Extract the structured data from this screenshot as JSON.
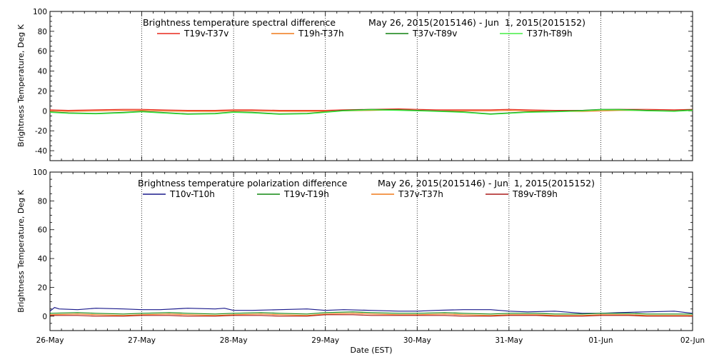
{
  "chart_data": [
    {
      "type": "line",
      "title": "Brightness temperature spectral difference",
      "date_range": "May 26, 2015(2015146) - Jun  1, 2015(2015152)",
      "ylabel": "Brightness Temperature, Deg K",
      "xlabel": "",
      "ylim": [
        -50,
        100
      ],
      "yticks": [
        -40,
        -20,
        0,
        20,
        40,
        60,
        80,
        100
      ],
      "grid": "vertical",
      "legend_placement": "top",
      "series": [
        {
          "name": "T19v-T37v",
          "color": "#e8281c",
          "x": [
            0,
            0.2,
            0.5,
            0.8,
            1.0,
            1.2,
            1.5,
            1.8,
            2.0,
            2.2,
            2.5,
            2.8,
            3.0,
            3.2,
            3.5,
            3.8,
            4.0,
            4.2,
            4.5,
            4.8,
            5.0,
            5.2,
            5.5,
            5.8,
            6.0,
            6.2,
            6.5,
            6.8,
            7.0
          ],
          "y": [
            1.0,
            0.5,
            1.0,
            1.5,
            1.5,
            1.0,
            0.5,
            0.5,
            1.0,
            1.0,
            0.5,
            0.5,
            0.5,
            1.0,
            1.5,
            2.0,
            1.5,
            1.0,
            1.0,
            1.0,
            1.5,
            1.0,
            0.5,
            0.5,
            1.0,
            1.5,
            1.5,
            1.0,
            1.5
          ]
        },
        {
          "name": "T19h-T37h",
          "color": "#f07a1a",
          "x": [
            0,
            0.2,
            0.5,
            0.8,
            1.0,
            1.2,
            1.5,
            1.8,
            2.0,
            2.2,
            2.5,
            2.8,
            3.0,
            3.2,
            3.5,
            3.8,
            4.0,
            4.2,
            4.5,
            4.8,
            5.0,
            5.2,
            5.5,
            5.8,
            6.0,
            6.2,
            6.5,
            6.8,
            7.0
          ],
          "y": [
            0.0,
            -0.5,
            0.0,
            0.5,
            0.5,
            0.0,
            -0.5,
            -0.5,
            0.0,
            0.0,
            -0.5,
            -0.5,
            -0.5,
            0.0,
            0.5,
            1.0,
            0.5,
            0.0,
            0.0,
            0.0,
            0.5,
            0.0,
            -0.5,
            -0.5,
            0.0,
            0.5,
            0.5,
            0.0,
            0.5
          ]
        },
        {
          "name": "T37v-T89v",
          "color": "#118011",
          "x": [
            0,
            0.2,
            0.5,
            0.8,
            1.0,
            1.2,
            1.5,
            1.8,
            2.0,
            2.2,
            2.5,
            2.8,
            3.0,
            3.2,
            3.5,
            3.8,
            4.0,
            4.2,
            4.5,
            4.8,
            5.0,
            5.2,
            5.5,
            5.8,
            6.0,
            6.2,
            6.5,
            6.8,
            7.0
          ],
          "y": [
            -1.0,
            -2.0,
            -2.5,
            -1.5,
            -0.5,
            -1.5,
            -3.0,
            -2.5,
            -1.0,
            -1.5,
            -3.0,
            -2.5,
            -1.0,
            0.5,
            1.5,
            1.0,
            0.5,
            0.0,
            -1.0,
            -3.0,
            -2.0,
            -1.0,
            -0.5,
            0.5,
            1.5,
            1.5,
            0.5,
            0.0,
            1.0
          ]
        },
        {
          "name": "T37h-T89h",
          "color": "#44ee44",
          "x": [
            0,
            0.2,
            0.5,
            0.8,
            1.0,
            1.2,
            1.5,
            1.8,
            2.0,
            2.2,
            2.5,
            2.8,
            3.0,
            3.2,
            3.5,
            3.8,
            4.0,
            4.2,
            4.5,
            4.8,
            5.0,
            5.2,
            5.5,
            5.8,
            6.0,
            6.2,
            6.5,
            6.8,
            7.0
          ],
          "y": [
            -1.5,
            -2.5,
            -3.0,
            -2.0,
            -1.0,
            -2.0,
            -3.5,
            -3.0,
            -1.5,
            -2.0,
            -3.5,
            -3.0,
            -1.5,
            0.0,
            1.0,
            0.5,
            0.0,
            -0.5,
            -1.5,
            -3.5,
            -2.5,
            -1.5,
            -1.0,
            0.0,
            1.0,
            1.0,
            0.0,
            -0.5,
            0.5
          ]
        }
      ]
    },
    {
      "type": "line",
      "title": "Brightness temperature polarization difference",
      "date_range": "May 26, 2015(2015146) - Jun  1, 2015(2015152)",
      "ylabel": "Brightness Temperature, Deg K",
      "xlabel": "Date (EST)",
      "ylim": [
        -10,
        100
      ],
      "yticks": [
        0,
        20,
        40,
        60,
        80,
        100
      ],
      "grid": "vertical",
      "legend_placement": "top",
      "categories": [
        "26-May",
        "27-May",
        "28-May",
        "29-May",
        "30-May",
        "31-May",
        "01-Jun",
        "02-Jun"
      ],
      "series": [
        {
          "name": "T10v-T10h",
          "color": "#1a1a8c",
          "x": [
            0,
            0.05,
            0.1,
            0.3,
            0.5,
            0.8,
            1.0,
            1.2,
            1.5,
            1.8,
            1.9,
            2.0,
            2.2,
            2.5,
            2.8,
            3.0,
            3.2,
            3.5,
            3.8,
            4.0,
            4.2,
            4.5,
            4.8,
            5.0,
            5.2,
            5.5,
            5.8,
            6.0,
            6.2,
            6.5,
            6.8,
            7.0
          ],
          "y": [
            3.5,
            6.0,
            5.0,
            4.5,
            5.5,
            5.0,
            4.5,
            4.5,
            5.5,
            5.0,
            5.5,
            4.0,
            4.0,
            4.5,
            5.0,
            4.0,
            4.5,
            4.0,
            3.5,
            3.5,
            4.0,
            4.5,
            4.5,
            3.5,
            3.0,
            3.5,
            2.0,
            2.0,
            2.5,
            3.0,
            3.5,
            2.0
          ]
        },
        {
          "name": "T19v-T19h",
          "color": "#118811",
          "x": [
            0,
            0.3,
            0.5,
            0.8,
            1.0,
            1.3,
            1.5,
            1.8,
            2.0,
            2.3,
            2.5,
            2.8,
            3.0,
            3.3,
            3.5,
            3.8,
            4.0,
            4.3,
            4.5,
            4.8,
            5.0,
            5.3,
            5.5,
            5.8,
            6.0,
            6.3,
            6.5,
            6.8,
            7.0
          ],
          "y": [
            2.0,
            2.5,
            2.0,
            1.5,
            2.0,
            2.5,
            2.0,
            1.5,
            2.0,
            2.5,
            2.0,
            1.5,
            2.5,
            3.0,
            2.5,
            2.0,
            2.0,
            2.5,
            2.0,
            1.5,
            2.0,
            2.0,
            1.5,
            1.5,
            2.0,
            2.0,
            1.5,
            1.5,
            1.5
          ]
        },
        {
          "name": "T37v-T37h",
          "color": "#f07a1a",
          "x": [
            0,
            0.3,
            0.5,
            0.8,
            1.0,
            1.3,
            1.5,
            1.8,
            2.0,
            2.3,
            2.5,
            2.8,
            3.0,
            3.3,
            3.5,
            3.8,
            4.0,
            4.3,
            4.5,
            4.8,
            5.0,
            5.3,
            5.5,
            5.8,
            6.0,
            6.3,
            6.5,
            6.8,
            7.0
          ],
          "y": [
            1.0,
            1.5,
            1.0,
            0.5,
            1.0,
            1.5,
            1.0,
            0.5,
            1.0,
            1.5,
            1.0,
            0.5,
            1.5,
            2.0,
            1.5,
            1.0,
            1.0,
            1.5,
            1.0,
            0.5,
            1.0,
            1.0,
            0.5,
            0.5,
            1.0,
            1.0,
            0.5,
            0.5,
            0.5
          ]
        },
        {
          "name": "T89v-T89h",
          "color": "#aa1a1a",
          "x": [
            0,
            0.3,
            0.5,
            0.8,
            1.0,
            1.3,
            1.5,
            1.8,
            2.0,
            2.3,
            2.5,
            2.8,
            3.0,
            3.3,
            3.5,
            3.8,
            4.0,
            4.3,
            4.5,
            4.8,
            5.0,
            5.3,
            5.5,
            5.8,
            6.0,
            6.3,
            6.5,
            6.8,
            7.0
          ],
          "y": [
            0.5,
            0.5,
            0.0,
            0.0,
            0.5,
            0.5,
            0.0,
            0.0,
            0.5,
            0.5,
            0.0,
            0.0,
            1.0,
            1.0,
            0.5,
            0.5,
            0.5,
            0.5,
            0.0,
            0.0,
            0.5,
            0.5,
            0.0,
            0.0,
            0.5,
            0.5,
            0.0,
            0.0,
            0.0
          ]
        }
      ]
    }
  ]
}
